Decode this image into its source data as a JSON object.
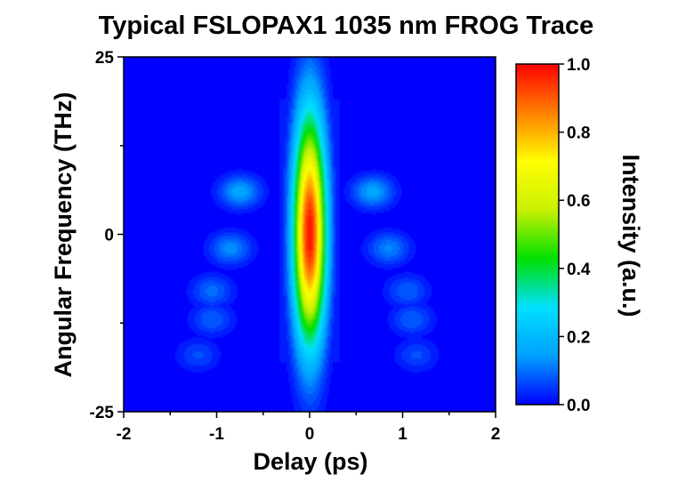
{
  "chart_data": {
    "type": "heatmap",
    "title": "Typical FSLOPAX1 1035 nm FROG Trace",
    "xlabel": "Delay (ps)",
    "ylabel": "Angular Frequency (THz)",
    "xlim": [
      -2,
      2
    ],
    "ylim": [
      -25,
      25
    ],
    "x_ticks": [
      -2,
      -1,
      0,
      1,
      2
    ],
    "y_ticks": [
      -25,
      0,
      25
    ],
    "x_tick_labels": [
      "-2",
      "-1",
      "0",
      "1",
      "2"
    ],
    "y_tick_labels": [
      "-25",
      "0",
      "25"
    ],
    "colorbar": {
      "label": "Intensity (a.u.)",
      "range": [
        0.0,
        1.0
      ],
      "ticks": [
        0.0,
        0.2,
        0.4,
        0.6,
        0.8,
        1.0
      ],
      "tick_labels": [
        "0.0",
        "0.2",
        "0.4",
        "0.6",
        "0.8",
        "1.0"
      ],
      "colormap": "rainbow (blue to red)",
      "colors": [
        "#0000ff",
        "#00a0ff",
        "#00e0ff",
        "#00e000",
        "#c8f000",
        "#ffff00",
        "#ff8000",
        "#ff0000"
      ]
    },
    "features": {
      "central_lobe": {
        "delay_ps": 0.0,
        "freq_thz": 0.0,
        "peak_intensity": 1.0,
        "freq_extent_thz": [
          -18,
          19
        ],
        "delay_halfwidth_ps": 0.32
      },
      "side_lobes": [
        {
          "delay_ps": -0.75,
          "freq_thz": 6,
          "intensity": 0.17
        },
        {
          "delay_ps": 0.68,
          "freq_thz": 6,
          "intensity": 0.17
        },
        {
          "delay_ps": -0.85,
          "freq_thz": -2,
          "intensity": 0.14
        },
        {
          "delay_ps": 0.85,
          "freq_thz": -2,
          "intensity": 0.13
        },
        {
          "delay_ps": -1.05,
          "freq_thz": -8,
          "intensity": 0.11
        },
        {
          "delay_ps": 1.05,
          "freq_thz": -8,
          "intensity": 0.1
        },
        {
          "delay_ps": -1.05,
          "freq_thz": -12,
          "intensity": 0.1
        },
        {
          "delay_ps": 1.1,
          "freq_thz": -12,
          "intensity": 0.1
        },
        {
          "delay_ps": -1.2,
          "freq_thz": -17,
          "intensity": 0.08
        },
        {
          "delay_ps": 1.15,
          "freq_thz": -17,
          "intensity": 0.08
        }
      ]
    }
  }
}
